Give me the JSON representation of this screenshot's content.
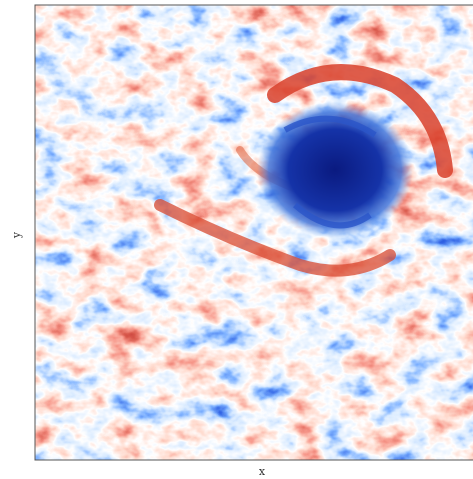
{
  "figure": {
    "x_label": "x",
    "y_label": "y"
  }
}
